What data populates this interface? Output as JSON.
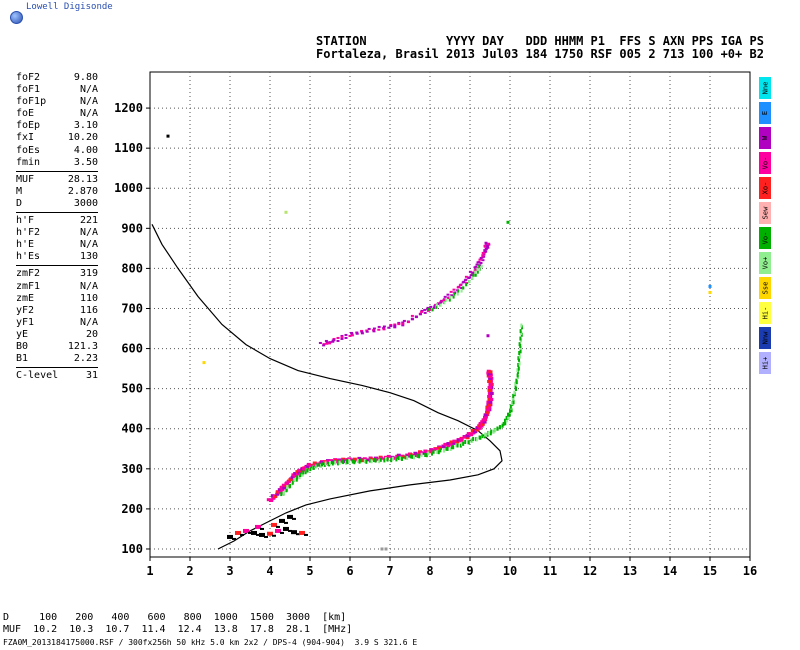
{
  "app": {
    "logo_text": "Lowell Digisonde"
  },
  "header": {
    "line1": "STATION           YYYY DAY   DDD HHMM P1  FFS S AXN PPS IGA PS",
    "line2": "Fortaleza, Brasil 2013 Jul03 184 1750 RSF 005 2 713 100 +0+ B2"
  },
  "params": [
    {
      "label": "foF2",
      "value": "9.80"
    },
    {
      "label": "foF1",
      "value": "N/A"
    },
    {
      "label": "foF1p",
      "value": "N/A"
    },
    {
      "label": "foE",
      "value": "N/A"
    },
    {
      "label": "foEp",
      "value": "3.10"
    },
    {
      "label": "fxI",
      "value": "10.20"
    },
    {
      "label": "foEs",
      "value": "4.00"
    },
    {
      "label": "fmin",
      "value": "3.50",
      "sep": true
    },
    {
      "label": "MUF",
      "value": "28.13"
    },
    {
      "label": "M",
      "value": "2.870"
    },
    {
      "label": "D",
      "value": "3000",
      "sep": true
    },
    {
      "label": "h'F",
      "value": "221"
    },
    {
      "label": "h'F2",
      "value": "N/A"
    },
    {
      "label": "h'E",
      "value": "N/A"
    },
    {
      "label": "h'Es",
      "value": "130",
      "sep": true
    },
    {
      "label": "zmF2",
      "value": "319"
    },
    {
      "label": "zmF1",
      "value": "N/A"
    },
    {
      "label": "zmE",
      "value": "110"
    },
    {
      "label": "yF2",
      "value": "116"
    },
    {
      "label": "yF1",
      "value": "N/A"
    },
    {
      "label": "yE",
      "value": "20"
    },
    {
      "label": "B0",
      "value": "121.3"
    },
    {
      "label": "B1",
      "value": "2.23",
      "sep": true
    },
    {
      "label": "C-level",
      "value": "31"
    }
  ],
  "legend": [
    {
      "label": "Nne",
      "color": "#00e5ee"
    },
    {
      "label": "E",
      "color": "#1e90ff"
    },
    {
      "label": "W",
      "color": "#b000c0"
    },
    {
      "label": "Vo-",
      "color": "#ff00a0"
    },
    {
      "label": "Xo-",
      "color": "#ff2020"
    },
    {
      "label": "Sew",
      "color": "#ffb0b0"
    },
    {
      "label": "Vo-",
      "color": "#00b000"
    },
    {
      "label": "Vo+",
      "color": "#90ee90"
    },
    {
      "label": "Sse",
      "color": "#ffd700"
    },
    {
      "label": "Hi-",
      "color": "#ffff40"
    },
    {
      "label": "Nnw",
      "color": "#1a3cb0"
    },
    {
      "label": "Hi+",
      "color": "#b0b0ff"
    }
  ],
  "muf_table": {
    "line1": "D     100   200   400   600   800  1000  1500  3000  [km]",
    "line2": "MUF  10.2  10.3  10.7  11.4  12.4  13.8  17.8  28.1  [MHz]"
  },
  "footer": "FZA0M_2013184175000.RSF / 300fx256h 50 kHz 5.0 km 2x2 / DPS-4 (904-904)  3.9 S 321.6 E",
  "chart_data": {
    "type": "scatter",
    "x_ticks": [
      "1",
      "2",
      "3",
      "4",
      "5",
      "6",
      "7",
      "8",
      "9",
      "10",
      "11",
      "12",
      "13",
      "14",
      "15",
      "16"
    ],
    "y_ticks": [
      "100",
      "200",
      "300",
      "400",
      "500",
      "600",
      "700",
      "800",
      "900",
      "1000",
      "1100",
      "1200"
    ],
    "xlim": [
      1,
      16
    ],
    "ylim": [
      80,
      1290
    ],
    "grid": true,
    "profile_line": [
      [
        1.05,
        910
      ],
      [
        1.3,
        860
      ],
      [
        1.7,
        800
      ],
      [
        2.2,
        730
      ],
      [
        2.8,
        660
      ],
      [
        3.4,
        610
      ],
      [
        4.0,
        575
      ],
      [
        4.7,
        545
      ],
      [
        5.5,
        525
      ],
      [
        6.3,
        508
      ],
      [
        7.0,
        490
      ],
      [
        7.6,
        470
      ],
      [
        8.2,
        440
      ],
      [
        8.7,
        420
      ],
      [
        9.2,
        395
      ],
      [
        9.5,
        370
      ],
      [
        9.75,
        345
      ],
      [
        9.8,
        320
      ],
      [
        9.6,
        300
      ],
      [
        9.2,
        285
      ],
      [
        8.5,
        272
      ],
      [
        7.5,
        260
      ],
      [
        6.5,
        245
      ],
      [
        5.5,
        225
      ],
      [
        4.9,
        210
      ],
      [
        4.4,
        190
      ],
      [
        3.9,
        165
      ],
      [
        3.5,
        145
      ],
      [
        3.1,
        120
      ],
      [
        2.7,
        100
      ]
    ],
    "ordinary_trace": [
      [
        4.0,
        220
      ],
      [
        4.2,
        240
      ],
      [
        4.4,
        262
      ],
      [
        4.6,
        282
      ],
      [
        4.8,
        298
      ],
      [
        5.0,
        308
      ],
      [
        5.3,
        315
      ],
      [
        5.6,
        320
      ],
      [
        6.0,
        322
      ],
      [
        6.5,
        324
      ],
      [
        7.0,
        328
      ],
      [
        7.5,
        334
      ],
      [
        8.0,
        345
      ],
      [
        8.4,
        358
      ],
      [
        8.7,
        370
      ],
      [
        9.0,
        385
      ],
      [
        9.2,
        400
      ],
      [
        9.35,
        420
      ],
      [
        9.45,
        445
      ],
      [
        9.5,
        470
      ],
      [
        9.52,
        500
      ],
      [
        9.5,
        530
      ],
      [
        9.48,
        545
      ]
    ],
    "extraordinary_trace": [
      [
        4.3,
        235
      ],
      [
        4.6,
        270
      ],
      [
        4.9,
        295
      ],
      [
        5.2,
        308
      ],
      [
        5.6,
        315
      ],
      [
        6.0,
        318
      ],
      [
        6.6,
        320
      ],
      [
        7.2,
        325
      ],
      [
        7.8,
        333
      ],
      [
        8.4,
        348
      ],
      [
        8.9,
        365
      ],
      [
        9.3,
        380
      ],
      [
        9.6,
        395
      ],
      [
        9.85,
        410
      ],
      [
        10.0,
        440
      ],
      [
        10.1,
        480
      ],
      [
        10.2,
        540
      ],
      [
        10.25,
        600
      ],
      [
        10.3,
        665
      ]
    ],
    "upper_trace": [
      [
        5.3,
        610
      ],
      [
        5.6,
        620
      ],
      [
        6.0,
        635
      ],
      [
        6.5,
        645
      ],
      [
        7.0,
        655
      ],
      [
        7.4,
        665
      ],
      [
        7.8,
        690
      ],
      [
        8.1,
        705
      ],
      [
        8.4,
        725
      ],
      [
        8.7,
        750
      ],
      [
        8.95,
        775
      ],
      [
        9.15,
        800
      ],
      [
        9.3,
        825
      ],
      [
        9.4,
        850
      ],
      [
        9.45,
        865
      ]
    ],
    "upper_green": [
      [
        8.0,
        695
      ],
      [
        8.4,
        718
      ],
      [
        8.8,
        748
      ],
      [
        9.1,
        780
      ],
      [
        9.3,
        810
      ]
    ],
    "e_layer_echo": [
      [
        3.0,
        130
      ],
      [
        3.2,
        140
      ],
      [
        3.4,
        145
      ],
      [
        3.6,
        140
      ],
      [
        3.8,
        135
      ],
      [
        4.0,
        138
      ],
      [
        4.2,
        145
      ],
      [
        4.4,
        150
      ],
      [
        4.6,
        142
      ],
      [
        4.8,
        140
      ],
      [
        3.7,
        155
      ],
      [
        4.3,
        170
      ],
      [
        4.5,
        180
      ],
      [
        4.1,
        160
      ]
    ],
    "scattered_points": [
      {
        "x": 1.45,
        "y": 1130,
        "color": "#000000"
      },
      {
        "x": 4.4,
        "y": 940,
        "color": "#b6e36b"
      },
      {
        "x": 9.95,
        "y": 915,
        "color": "#00b000"
      },
      {
        "x": 2.35,
        "y": 565,
        "color": "#ffd700"
      },
      {
        "x": 15.0,
        "y": 755,
        "color": "#1e90ff"
      },
      {
        "x": 15.0,
        "y": 740,
        "color": "#ffd700"
      },
      {
        "x": 9.45,
        "y": 632,
        "color": "#b000c0"
      },
      {
        "x": 6.8,
        "y": 100,
        "color": "#999999"
      },
      {
        "x": 6.9,
        "y": 100,
        "color": "#999999"
      }
    ]
  }
}
